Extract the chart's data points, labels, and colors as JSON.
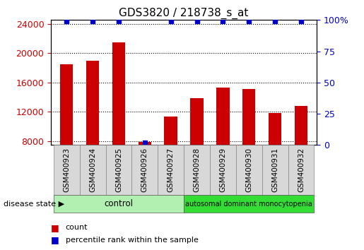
{
  "title": "GDS3820 / 218738_s_at",
  "samples": [
    "GSM400923",
    "GSM400924",
    "GSM400925",
    "GSM400926",
    "GSM400927",
    "GSM400928",
    "GSM400929",
    "GSM400930",
    "GSM400931",
    "GSM400932"
  ],
  "counts": [
    18500,
    19000,
    21500,
    7900,
    11400,
    13900,
    15300,
    15100,
    11900,
    12800
  ],
  "percentile_ranks": [
    99,
    99,
    99,
    2,
    99,
    99,
    99,
    99,
    99,
    99
  ],
  "bar_color": "#cc0000",
  "dot_color": "#0000cc",
  "ylim_left": [
    7500,
    24500
  ],
  "ylim_right": [
    0,
    100
  ],
  "yticks_left": [
    8000,
    12000,
    16000,
    20000,
    24000
  ],
  "yticks_right": [
    0,
    25,
    50,
    75,
    100
  ],
  "control_samples": 5,
  "group1_label": "control",
  "group2_label": "autosomal dominant monocytopenia",
  "group1_color": "#b2f0b2",
  "group2_color": "#33dd33",
  "disease_state_label": "disease state",
  "legend_count_label": "count",
  "legend_pct_label": "percentile rank within the sample",
  "tick_label_color_left": "#cc0000",
  "tick_label_color_right": "#0000cc",
  "bar_width": 0.5,
  "figsize": [
    5.15,
    3.54
  ],
  "dpi": 100
}
